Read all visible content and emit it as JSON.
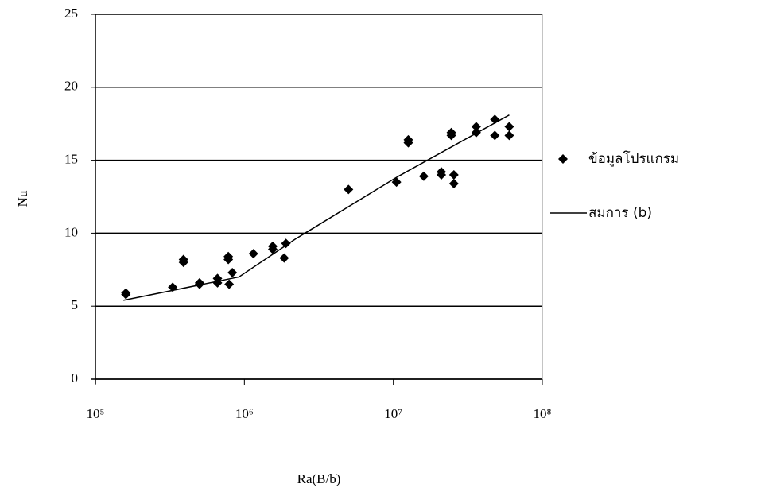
{
  "chart_data": {
    "type": "scatter",
    "x_label": "Ra(B/b)",
    "y_label": "Nu",
    "xlim": [
      100000,
      100000000
    ],
    "log_x": true,
    "xticks": [
      {
        "value": 100000,
        "label": "10⁵"
      },
      {
        "value": 1000000,
        "label": "10⁶"
      },
      {
        "value": 10000000,
        "label": "10⁷"
      },
      {
        "value": 100000000,
        "label": "10⁸"
      }
    ],
    "ylim": [
      0,
      25
    ],
    "yticks": [
      0,
      5,
      10,
      15,
      20,
      25
    ],
    "grid": true,
    "legend": "right",
    "series": [
      {
        "name": "ข้อมูลโปรแกรม",
        "type": "scatter",
        "color": "#000000",
        "x": [
          160000,
          160000,
          330000,
          390000,
          390000,
          500000,
          500000,
          660000,
          660000,
          780000,
          780000,
          790000,
          830000,
          1150000,
          1550000,
          1550000,
          1850000,
          1900000,
          5000000,
          10500000,
          12600000,
          12600000,
          16000000,
          21000000,
          21000000,
          24500000,
          24500000,
          25500000,
          25500000,
          36000000,
          36000000,
          48000000,
          48000000,
          60000000,
          60000000
        ],
        "values": [
          5.9,
          5.8,
          6.3,
          8.0,
          8.2,
          6.5,
          6.6,
          6.6,
          6.9,
          8.2,
          8.4,
          6.5,
          7.3,
          8.6,
          8.9,
          9.1,
          8.3,
          9.3,
          13.0,
          13.5,
          16.2,
          16.4,
          13.9,
          14.2,
          14.0,
          16.7,
          16.9,
          14.0,
          13.4,
          17.3,
          16.9,
          17.8,
          16.7,
          17.3,
          16.7
        ]
      },
      {
        "name": "สมการ (b)",
        "type": "line",
        "color": "#000000",
        "x": [
          154000,
          920000,
          2200000,
          10800000,
          60000000
        ],
        "values": [
          5.4,
          7.0,
          9.6,
          13.9,
          18.1
        ]
      }
    ]
  }
}
